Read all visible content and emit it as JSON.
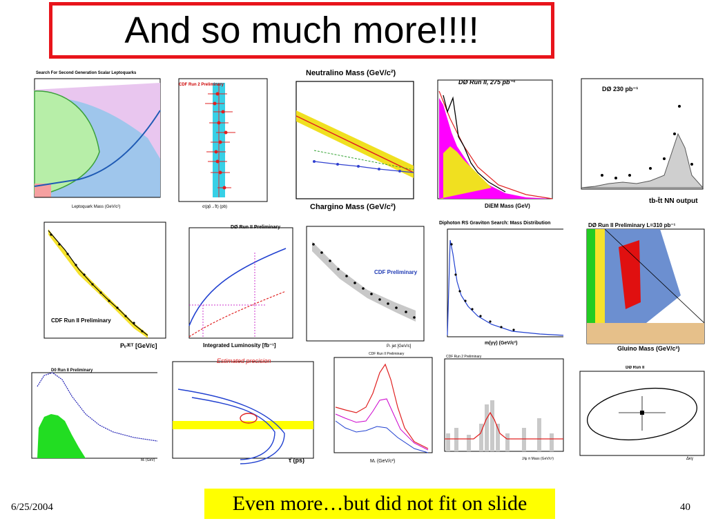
{
  "slide": {
    "title": "And so much more!!!!",
    "note": "Even more…but did not fit on slide",
    "date": "6/25/2004",
    "page_number": "40"
  },
  "panels": [
    {
      "id": "leptoquarks",
      "label": "Search For Second Generation Scalar Leptoquarks",
      "xlabel": "Leptoquark Mass (GeV/c²)",
      "kind": "exclusion"
    },
    {
      "id": "top-xsec",
      "label": "CDF Run 2 Preliminary",
      "xlabel": "σ(pp̄→t̄t) (pb)",
      "kind": "summary"
    },
    {
      "id": "gmsb",
      "label": "Neutralino Mass (GeV/c²)",
      "xlabel": "Chargino Mass (GeV/c²)",
      "kind": "limit"
    },
    {
      "id": "diem-mass",
      "label": "DØ Run II, 275 pb⁻¹",
      "xlabel": "DiEM Mass (GeV)",
      "kind": "histogram"
    },
    {
      "id": "single-top-nn",
      "label": "DØ 230 pb⁻¹",
      "xlabel": "tb-t̄t NN output",
      "kind": "histogram"
    },
    {
      "id": "jet-pt",
      "label": "CDF Run II Preliminary",
      "xlabel": "Pₜᴶᴱᵀ [GeV/c]",
      "kind": "falling"
    },
    {
      "id": "significance",
      "label": "DØ Run II Preliminary",
      "xlabel": "Integrated Luminosity [fb⁻¹]",
      "kind": "curves"
    },
    {
      "id": "cdf-jets",
      "label": "CDF Preliminary",
      "xlabel": "Pₜ jet [GeV/c]",
      "kind": "falling"
    },
    {
      "id": "diphoton",
      "label": "Diphoton RS Graviton Search: Mass Distribution",
      "xlabel": "m(γγ) (GeV/c²)",
      "kind": "peak"
    },
    {
      "id": "squark-gluino",
      "label": "DØ Run II Preliminary  L=310 pb⁻¹",
      "xlabel": "Gluino Mass (GeV/c²)",
      "kind": "exclusion"
    },
    {
      "id": "d0-bump",
      "label": "D0 Run II Preliminary",
      "xlabel": "Mₜ (GeV)",
      "kind": "bump"
    },
    {
      "id": "bs-lifetime",
      "label": "Estimated precision",
      "xlabel": "τ̄ (ps)",
      "kind": "contour"
    },
    {
      "id": "w-mass",
      "label": "CDF Run II Preliminary",
      "xlabel": "Mₜ (GeV/c²)",
      "kind": "histogram"
    },
    {
      "id": "bs-mass",
      "label": "CDF Run 2 Preliminary",
      "xlabel": "J/ψ π Mass (GeV/c²)",
      "kind": "peak"
    },
    {
      "id": "ellipse",
      "label": "DØ Run II",
      "xlabel": "Δκγ",
      "kind": "ellipse"
    }
  ]
}
